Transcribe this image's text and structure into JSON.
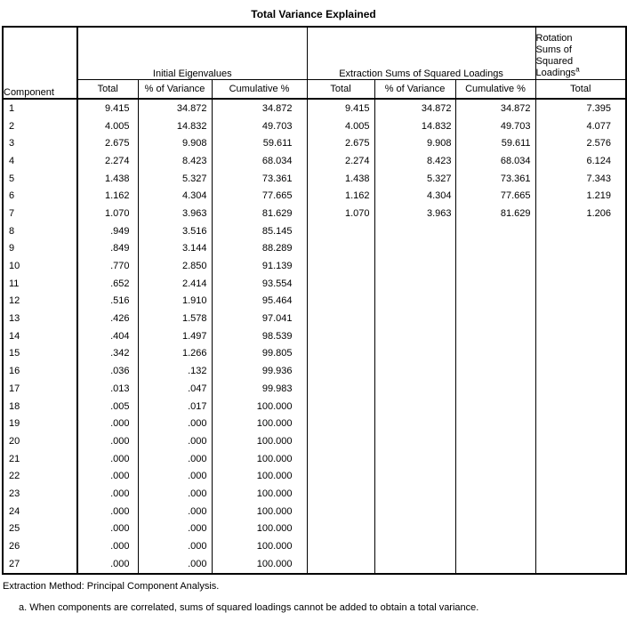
{
  "title": "Total Variance Explained",
  "chart_data": {
    "type": "table",
    "title": "Total Variance Explained",
    "corner_header": "Component",
    "group_headers": [
      "Initial Eigenvalues",
      "Extraction Sums of Squared Loadings",
      "Rotation Sums of Squared Loadings"
    ],
    "rotation_footnote_marker": "a",
    "sub_headers": [
      "Total",
      "% of Variance",
      "Cumulative %",
      "Total",
      "% of Variance",
      "Cumulative %",
      "Total"
    ],
    "rows": [
      [
        "1",
        "9.415",
        "34.872",
        "34.872",
        "9.415",
        "34.872",
        "34.872",
        "7.395"
      ],
      [
        "2",
        "4.005",
        "14.832",
        "49.703",
        "4.005",
        "14.832",
        "49.703",
        "4.077"
      ],
      [
        "3",
        "2.675",
        "9.908",
        "59.611",
        "2.675",
        "9.908",
        "59.611",
        "2.576"
      ],
      [
        "4",
        "2.274",
        "8.423",
        "68.034",
        "2.274",
        "8.423",
        "68.034",
        "6.124"
      ],
      [
        "5",
        "1.438",
        "5.327",
        "73.361",
        "1.438",
        "5.327",
        "73.361",
        "7.343"
      ],
      [
        "6",
        "1.162",
        "4.304",
        "77.665",
        "1.162",
        "4.304",
        "77.665",
        "1.219"
      ],
      [
        "7",
        "1.070",
        "3.963",
        "81.629",
        "1.070",
        "3.963",
        "81.629",
        "1.206"
      ],
      [
        "8",
        ".949",
        "3.516",
        "85.145",
        "",
        "",
        "",
        ""
      ],
      [
        "9",
        ".849",
        "3.144",
        "88.289",
        "",
        "",
        "",
        ""
      ],
      [
        "10",
        ".770",
        "2.850",
        "91.139",
        "",
        "",
        "",
        ""
      ],
      [
        "11",
        ".652",
        "2.414",
        "93.554",
        "",
        "",
        "",
        ""
      ],
      [
        "12",
        ".516",
        "1.910",
        "95.464",
        "",
        "",
        "",
        ""
      ],
      [
        "13",
        ".426",
        "1.578",
        "97.041",
        "",
        "",
        "",
        ""
      ],
      [
        "14",
        ".404",
        "1.497",
        "98.539",
        "",
        "",
        "",
        ""
      ],
      [
        "15",
        ".342",
        "1.266",
        "99.805",
        "",
        "",
        "",
        ""
      ],
      [
        "16",
        ".036",
        ".132",
        "99.936",
        "",
        "",
        "",
        ""
      ],
      [
        "17",
        ".013",
        ".047",
        "99.983",
        "",
        "",
        "",
        ""
      ],
      [
        "18",
        ".005",
        ".017",
        "100.000",
        "",
        "",
        "",
        ""
      ],
      [
        "19",
        ".000",
        ".000",
        "100.000",
        "",
        "",
        "",
        ""
      ],
      [
        "20",
        ".000",
        ".000",
        "100.000",
        "",
        "",
        "",
        ""
      ],
      [
        "21",
        ".000",
        ".000",
        "100.000",
        "",
        "",
        "",
        ""
      ],
      [
        "22",
        ".000",
        ".000",
        "100.000",
        "",
        "",
        "",
        ""
      ],
      [
        "23",
        ".000",
        ".000",
        "100.000",
        "",
        "",
        "",
        ""
      ],
      [
        "24",
        ".000",
        ".000",
        "100.000",
        "",
        "",
        "",
        ""
      ],
      [
        "25",
        ".000",
        ".000",
        "100.000",
        "",
        "",
        "",
        ""
      ],
      [
        "26",
        ".000",
        ".000",
        "100.000",
        "",
        "",
        "",
        ""
      ],
      [
        "27",
        ".000",
        ".000",
        "100.000",
        "",
        "",
        "",
        ""
      ]
    ]
  },
  "footnotes": {
    "extraction_method": "Extraction Method: Principal Component Analysis.",
    "a": "a. When components are correlated, sums of squared loadings cannot be added to obtain a total variance."
  },
  "colors": {
    "background": "#ffffff",
    "text": "#000000",
    "border": "#000000"
  }
}
